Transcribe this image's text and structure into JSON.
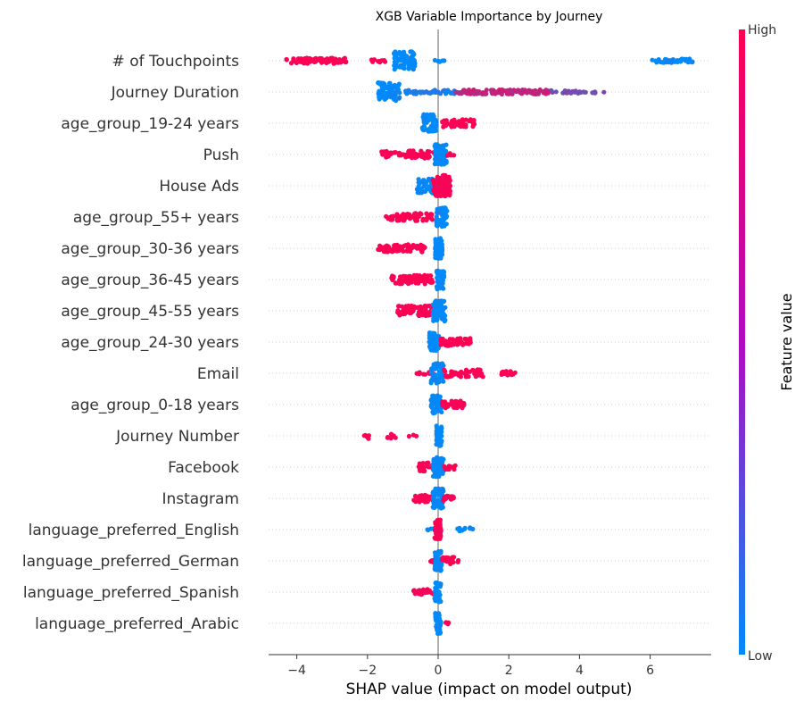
{
  "chart_data": {
    "type": "scatter",
    "title": "XGB Variable Importance by Journey",
    "xlabel": "SHAP value (impact on model output)",
    "xlim": [
      -4.8,
      7.7
    ],
    "xticks": [
      -4,
      -2,
      0,
      2,
      4,
      6
    ],
    "grid": false,
    "colorbar": {
      "label": "Feature value",
      "high_label": "High",
      "low_label": "Low",
      "low_color": "#008bfb",
      "high_color": "#ff0052"
    },
    "features": [
      {
        "name": "# of Touchpoints",
        "clusters": [
          {
            "xmin": -4.3,
            "xmax": -2.6,
            "v": 1,
            "n": 90,
            "spread": 0.22
          },
          {
            "xmin": -1.9,
            "xmax": -1.5,
            "v": 1,
            "n": 10,
            "spread": 0.15
          },
          {
            "xmin": -1.25,
            "xmax": -0.65,
            "v": 0,
            "n": 70,
            "spread": 0.75
          },
          {
            "xmin": -0.1,
            "xmax": 0.25,
            "v": 0,
            "n": 6,
            "spread": 0.1
          },
          {
            "xmin": 6.05,
            "xmax": 7.2,
            "v": 0,
            "n": 45,
            "spread": 0.15
          }
        ]
      },
      {
        "name": "Journey Duration",
        "clusters": [
          {
            "xmin": -1.7,
            "xmax": -1.05,
            "v": 0,
            "n": 70,
            "spread": 0.75
          },
          {
            "xmin": -1.0,
            "xmax": 0.5,
            "v": 0.1,
            "n": 45,
            "spread": 0.15
          },
          {
            "xmin": 0.5,
            "xmax": 3.2,
            "v": 0.75,
            "n": 130,
            "spread": 0.18
          },
          {
            "xmin": 3.2,
            "xmax": 4.7,
            "v": 0.45,
            "n": 30,
            "spread": 0.1
          }
        ]
      },
      {
        "name": "age_group_19-24 years",
        "clusters": [
          {
            "xmin": -0.45,
            "xmax": -0.05,
            "v": 0,
            "n": 60,
            "spread": 0.7
          },
          {
            "xmin": 0.1,
            "xmax": 1.05,
            "v": 1,
            "n": 50,
            "spread": 0.3
          }
        ]
      },
      {
        "name": "Push",
        "clusters": [
          {
            "xmin": -1.6,
            "xmax": -0.1,
            "v": 1,
            "n": 70,
            "spread": 0.3
          },
          {
            "xmin": -0.1,
            "xmax": 0.25,
            "v": 0,
            "n": 70,
            "spread": 0.8
          },
          {
            "xmin": 0.25,
            "xmax": 0.5,
            "v": 1,
            "n": 6,
            "spread": 0.1
          }
        ]
      },
      {
        "name": "House Ads",
        "clusters": [
          {
            "xmin": -0.6,
            "xmax": -0.05,
            "v": 0,
            "n": 50,
            "spread": 0.6
          },
          {
            "xmin": -0.15,
            "xmax": 0.35,
            "v": 1,
            "n": 110,
            "spread": 0.85
          }
        ]
      },
      {
        "name": "age_group_55+ years",
        "clusters": [
          {
            "xmin": -1.5,
            "xmax": -0.15,
            "v": 1,
            "n": 60,
            "spread": 0.3
          },
          {
            "xmin": -0.05,
            "xmax": 0.25,
            "v": 0,
            "n": 60,
            "spread": 0.8
          }
        ]
      },
      {
        "name": "age_group_30-36 years",
        "clusters": [
          {
            "xmin": -1.7,
            "xmax": -0.3,
            "v": 1,
            "n": 70,
            "spread": 0.3
          },
          {
            "xmin": -0.1,
            "xmax": 0.12,
            "v": 0,
            "n": 60,
            "spread": 0.8
          }
        ]
      },
      {
        "name": "age_group_36-45 years",
        "clusters": [
          {
            "xmin": -1.35,
            "xmax": -0.15,
            "v": 1,
            "n": 70,
            "spread": 0.35
          },
          {
            "xmin": -0.05,
            "xmax": 0.18,
            "v": 0,
            "n": 60,
            "spread": 0.8
          }
        ]
      },
      {
        "name": "age_group_45-55 years",
        "clusters": [
          {
            "xmin": -1.15,
            "xmax": -0.15,
            "v": 1,
            "n": 70,
            "spread": 0.4
          },
          {
            "xmin": -0.15,
            "xmax": 0.2,
            "v": 0,
            "n": 60,
            "spread": 0.85
          }
        ]
      },
      {
        "name": "age_group_24-30 years",
        "clusters": [
          {
            "xmin": -0.25,
            "xmax": 0.05,
            "v": 0,
            "n": 50,
            "spread": 0.75
          },
          {
            "xmin": 0.05,
            "xmax": 0.95,
            "v": 1,
            "n": 50,
            "spread": 0.3
          }
        ]
      },
      {
        "name": "Email",
        "clusters": [
          {
            "xmin": -0.65,
            "xmax": -0.15,
            "v": 1,
            "n": 12,
            "spread": 0.1
          },
          {
            "xmin": -0.2,
            "xmax": 0.15,
            "v": 0,
            "n": 60,
            "spread": 0.85
          },
          {
            "xmin": 0.15,
            "xmax": 1.3,
            "v": 1,
            "n": 45,
            "spread": 0.3
          },
          {
            "xmin": 1.75,
            "xmax": 2.2,
            "v": 1,
            "n": 12,
            "spread": 0.2
          }
        ]
      },
      {
        "name": "age_group_0-18 years",
        "clusters": [
          {
            "xmin": -0.2,
            "xmax": 0.1,
            "v": 0,
            "n": 55,
            "spread": 0.75
          },
          {
            "xmin": 0.1,
            "xmax": 0.75,
            "v": 1,
            "n": 40,
            "spread": 0.3
          }
        ]
      },
      {
        "name": "Journey Number",
        "clusters": [
          {
            "xmin": -2.1,
            "xmax": -1.95,
            "v": 1,
            "n": 5,
            "spread": 0.25
          },
          {
            "xmin": -1.55,
            "xmax": -1.2,
            "v": 1,
            "n": 8,
            "spread": 0.25
          },
          {
            "xmin": -0.9,
            "xmax": -0.6,
            "v": 1,
            "n": 3,
            "spread": 0.1
          },
          {
            "xmin": -0.05,
            "xmax": 0.1,
            "v": 0,
            "n": 50,
            "spread": 0.8
          }
        ]
      },
      {
        "name": "Facebook",
        "clusters": [
          {
            "xmin": -0.55,
            "xmax": -0.1,
            "v": 1,
            "n": 30,
            "spread": 0.35
          },
          {
            "xmin": -0.15,
            "xmax": 0.15,
            "v": 0,
            "n": 60,
            "spread": 0.8
          },
          {
            "xmin": 0.15,
            "xmax": 0.5,
            "v": 1,
            "n": 12,
            "spread": 0.2
          }
        ]
      },
      {
        "name": "Instagram",
        "clusters": [
          {
            "xmin": -0.7,
            "xmax": -0.1,
            "v": 1,
            "n": 35,
            "spread": 0.3
          },
          {
            "xmin": -0.15,
            "xmax": 0.15,
            "v": 0,
            "n": 60,
            "spread": 0.8
          },
          {
            "xmin": 0.1,
            "xmax": 0.45,
            "v": 1,
            "n": 18,
            "spread": 0.2
          }
        ]
      },
      {
        "name": "language_preferred_English",
        "clusters": [
          {
            "xmin": -0.35,
            "xmax": -0.1,
            "v": 0,
            "n": 5,
            "spread": 0.1
          },
          {
            "xmin": -0.1,
            "xmax": 0.08,
            "v": 1,
            "n": 60,
            "spread": 0.8
          },
          {
            "xmin": 0.5,
            "xmax": 1.2,
            "v": 0,
            "n": 10,
            "spread": 0.15
          }
        ]
      },
      {
        "name": "language_preferred_German",
        "clusters": [
          {
            "xmin": -0.3,
            "xmax": -0.05,
            "v": 1,
            "n": 8,
            "spread": 0.15
          },
          {
            "xmin": -0.1,
            "xmax": 0.1,
            "v": 0,
            "n": 60,
            "spread": 0.8
          },
          {
            "xmin": 0.1,
            "xmax": 0.6,
            "v": 1,
            "n": 25,
            "spread": 0.3
          }
        ]
      },
      {
        "name": "language_preferred_Spanish",
        "clusters": [
          {
            "xmin": -0.7,
            "xmax": -0.1,
            "v": 1,
            "n": 22,
            "spread": 0.25
          },
          {
            "xmin": -0.1,
            "xmax": 0.08,
            "v": 0,
            "n": 50,
            "spread": 0.8
          }
        ]
      },
      {
        "name": "language_preferred_Arabic",
        "clusters": [
          {
            "xmin": -0.08,
            "xmax": 0.08,
            "v": 0,
            "n": 55,
            "spread": 0.85
          },
          {
            "xmin": 0.12,
            "xmax": 0.3,
            "v": 1,
            "n": 5,
            "spread": 0.1
          }
        ]
      }
    ]
  }
}
